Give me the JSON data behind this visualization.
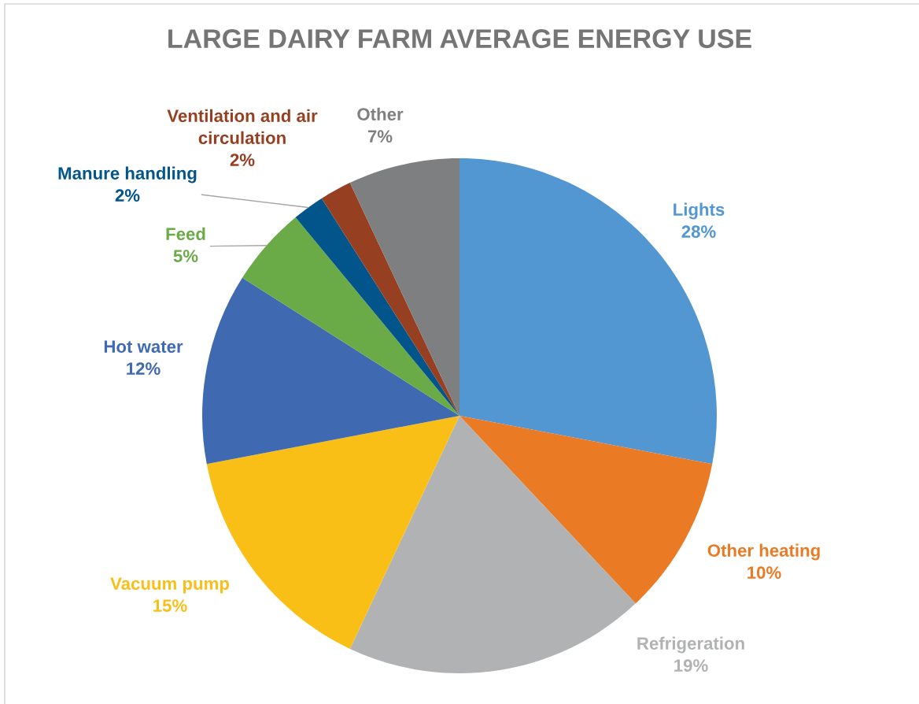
{
  "chart_data": {
    "type": "pie",
    "title": "LARGE DAIRY FARM AVERAGE ENERGY USE",
    "categories": [
      "Lights",
      "Other heating",
      "Refrigeration",
      "Vacuum pump",
      "Hot water",
      "Feed",
      "Manure handling",
      "Ventilation and air circulation",
      "Other"
    ],
    "values": [
      28,
      10,
      19,
      15,
      12,
      5,
      2,
      2,
      7
    ],
    "value_labels": [
      "28%",
      "10%",
      "19%",
      "15%",
      "12%",
      "5%",
      "2%",
      "2%",
      "7%"
    ],
    "colors": [
      "#5296D2",
      "#EB7A25",
      "#B1B2B3",
      "#FABF16",
      "#3F69B1",
      "#6AAB47",
      "#02558B",
      "#963F21",
      "#7E7F80"
    ]
  }
}
